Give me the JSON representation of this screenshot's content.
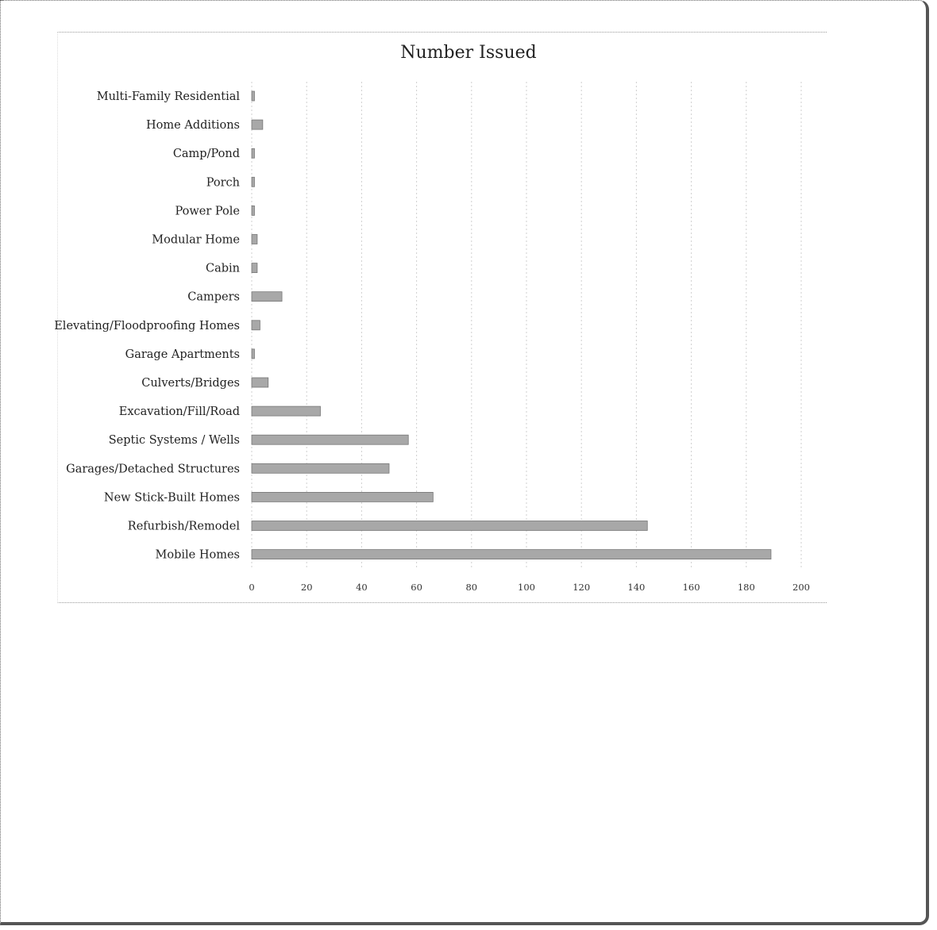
{
  "chart_data": {
    "type": "bar",
    "orientation": "horizontal",
    "title": "Number Issued",
    "categories": [
      "Multi-Family Residential",
      "Home Additions",
      "Camp/Pond",
      "Porch",
      "Power Pole",
      "Modular Home",
      "Cabin",
      "Campers",
      "Elevating/Floodproofing Homes",
      "Garage Apartments",
      "Culverts/Bridges",
      "Excavation/Fill/Road",
      "Septic Systems / Wells",
      "Garages/Detached Structures",
      "New Stick-Built Homes",
      "Refurbish/Remodel",
      "Mobile Homes"
    ],
    "values": [
      1,
      4,
      1,
      1,
      1,
      2,
      2,
      11,
      3,
      1,
      6,
      25,
      57,
      50,
      66,
      144,
      189
    ],
    "xlim": [
      0,
      200
    ],
    "xticks": [
      "0",
      "20",
      "40",
      "60",
      "80",
      "100",
      "120",
      "140",
      "160",
      "180",
      "200"
    ],
    "grid": true,
    "bar_color": "#a8a8a8"
  }
}
